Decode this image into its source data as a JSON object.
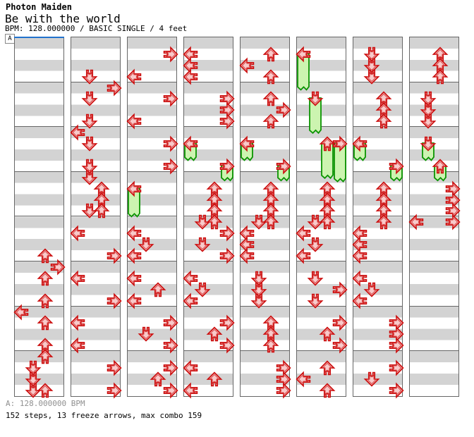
{
  "header": {
    "group": "Photon Maiden",
    "title": "Be with the world",
    "info": "BPM: 128.000000 / BASIC SINGLE / 4 feet"
  },
  "section_marker": {
    "label": "A"
  },
  "footer": {
    "bpm_legend": "A: 128.000000 BPM",
    "summary": "152 steps, 13 freeze arrows, max combo 159"
  },
  "colors": {
    "arrow_fill": "#f8caca",
    "arrow_stroke": "#cc1010",
    "arrow_inner_stroke": "#d84040",
    "freeze_fill": "#ccf4b0",
    "freeze_stroke": "#0a9400",
    "stripe_gray": "#d3d3d3",
    "stripe_white": "#ffffff",
    "measure_line": "#666666",
    "section_line": "#2272cc",
    "footer_gray": "#909090"
  },
  "chart_data": {
    "type": "step-chart",
    "game_mode": "BASIC SINGLE",
    "bpm": 128.0,
    "feet": 4,
    "lanes": [
      "left",
      "down",
      "up",
      "right"
    ],
    "columns": 8,
    "measures_per_column": 8,
    "beats_per_measure": 4,
    "totals": {
      "steps": 152,
      "freeze_arrows": 13,
      "max_combo": 159
    },
    "arrow_format": "[beat_row_0_to_31_within_column, direction]",
    "freeze_format": "[direction, start_beat_row, end_beat_row]",
    "steps": [
      {
        "arrows": [
          [
            19,
            "up"
          ],
          [
            20,
            "right"
          ],
          [
            21,
            "up"
          ],
          [
            23,
            "up"
          ],
          [
            24,
            "left"
          ],
          [
            25,
            "up"
          ],
          [
            27,
            "up"
          ],
          [
            28,
            "up"
          ],
          [
            29,
            "down"
          ],
          [
            30,
            "down"
          ],
          [
            31,
            "down"
          ],
          [
            31,
            "up"
          ]
        ],
        "freezes": []
      },
      {
        "arrows": [
          [
            3,
            "down"
          ],
          [
            4,
            "right"
          ],
          [
            5,
            "down"
          ],
          [
            7,
            "down"
          ],
          [
            8,
            "left"
          ],
          [
            9,
            "down"
          ],
          [
            11,
            "down"
          ],
          [
            12,
            "down"
          ],
          [
            13,
            "up"
          ],
          [
            14,
            "up"
          ],
          [
            15,
            "down"
          ],
          [
            15,
            "up"
          ],
          [
            17,
            "left"
          ],
          [
            19,
            "right"
          ],
          [
            21,
            "left"
          ],
          [
            23,
            "right"
          ],
          [
            25,
            "left"
          ],
          [
            27,
            "left"
          ],
          [
            29,
            "right"
          ],
          [
            31,
            "right"
          ]
        ],
        "freezes": []
      },
      {
        "arrows": [
          [
            1,
            "right"
          ],
          [
            3,
            "left"
          ],
          [
            5,
            "right"
          ],
          [
            7,
            "left"
          ],
          [
            9,
            "right"
          ],
          [
            11,
            "right"
          ],
          [
            13,
            "left"
          ],
          [
            17,
            "left"
          ],
          [
            18,
            "down"
          ],
          [
            19,
            "left"
          ],
          [
            21,
            "left"
          ],
          [
            22,
            "up"
          ],
          [
            23,
            "left"
          ],
          [
            25,
            "right"
          ],
          [
            26,
            "down"
          ],
          [
            27,
            "right"
          ],
          [
            29,
            "right"
          ],
          [
            30,
            "up"
          ],
          [
            31,
            "right"
          ]
        ],
        "freezes": [
          [
            "left",
            13,
            16
          ]
        ]
      },
      {
        "arrows": [
          [
            1,
            "left"
          ],
          [
            2,
            "left"
          ],
          [
            3,
            "left"
          ],
          [
            5,
            "right"
          ],
          [
            6,
            "right"
          ],
          [
            7,
            "right"
          ],
          [
            9,
            "left"
          ],
          [
            11,
            "right"
          ],
          [
            13,
            "up"
          ],
          [
            14,
            "up"
          ],
          [
            15,
            "up"
          ],
          [
            16,
            "down"
          ],
          [
            16,
            "up"
          ],
          [
            17,
            "right"
          ],
          [
            18,
            "down"
          ],
          [
            19,
            "right"
          ],
          [
            21,
            "left"
          ],
          [
            22,
            "down"
          ],
          [
            23,
            "left"
          ],
          [
            25,
            "right"
          ],
          [
            26,
            "up"
          ],
          [
            27,
            "right"
          ],
          [
            29,
            "left"
          ],
          [
            30,
            "up"
          ],
          [
            31,
            "left"
          ]
        ],
        "freezes": [
          [
            "left",
            9,
            11
          ],
          [
            "right",
            11,
            12.8
          ]
        ]
      },
      {
        "arrows": [
          [
            1,
            "up"
          ],
          [
            2,
            "left"
          ],
          [
            3,
            "up"
          ],
          [
            5,
            "up"
          ],
          [
            6,
            "right"
          ],
          [
            7,
            "up"
          ],
          [
            9,
            "left"
          ],
          [
            11,
            "right"
          ],
          [
            13,
            "up"
          ],
          [
            14,
            "up"
          ],
          [
            15,
            "up"
          ],
          [
            16,
            "down"
          ],
          [
            16,
            "up"
          ],
          [
            17,
            "left"
          ],
          [
            18,
            "left"
          ],
          [
            19,
            "left"
          ],
          [
            21,
            "down"
          ],
          [
            22,
            "down"
          ],
          [
            23,
            "down"
          ],
          [
            25,
            "up"
          ],
          [
            26,
            "up"
          ],
          [
            27,
            "up"
          ],
          [
            29,
            "right"
          ],
          [
            30,
            "right"
          ],
          [
            31,
            "right"
          ]
        ],
        "freezes": [
          [
            "left",
            9,
            11
          ],
          [
            "right",
            11,
            12.8
          ]
        ]
      },
      {
        "arrows": [
          [
            1,
            "left"
          ],
          [
            5,
            "down"
          ],
          [
            9,
            "up"
          ],
          [
            9,
            "right"
          ],
          [
            13,
            "up"
          ],
          [
            14,
            "up"
          ],
          [
            15,
            "up"
          ],
          [
            16,
            "down"
          ],
          [
            16,
            "up"
          ],
          [
            17,
            "left"
          ],
          [
            18,
            "down"
          ],
          [
            19,
            "left"
          ],
          [
            21,
            "down"
          ],
          [
            22,
            "right"
          ],
          [
            23,
            "down"
          ],
          [
            25,
            "right"
          ],
          [
            26,
            "up"
          ],
          [
            27,
            "right"
          ],
          [
            29,
            "up"
          ],
          [
            30,
            "left"
          ],
          [
            31,
            "up"
          ]
        ],
        "freezes": [
          [
            "left",
            1,
            4.7
          ],
          [
            "down",
            5,
            8.6
          ],
          [
            "up",
            9,
            12.6
          ],
          [
            "right",
            9,
            12.9
          ]
        ]
      },
      {
        "arrows": [
          [
            1,
            "down"
          ],
          [
            2,
            "down"
          ],
          [
            3,
            "down"
          ],
          [
            5,
            "up"
          ],
          [
            6,
            "up"
          ],
          [
            7,
            "up"
          ],
          [
            9,
            "left"
          ],
          [
            11,
            "right"
          ],
          [
            13,
            "up"
          ],
          [
            14,
            "up"
          ],
          [
            15,
            "up"
          ],
          [
            16,
            "up"
          ],
          [
            17,
            "left"
          ],
          [
            18,
            "left"
          ],
          [
            19,
            "left"
          ],
          [
            21,
            "left"
          ],
          [
            22,
            "down"
          ],
          [
            23,
            "left"
          ],
          [
            25,
            "right"
          ],
          [
            26,
            "right"
          ],
          [
            27,
            "right"
          ],
          [
            29,
            "right"
          ],
          [
            30,
            "down"
          ],
          [
            31,
            "right"
          ]
        ],
        "freezes": [
          [
            "left",
            9,
            11
          ],
          [
            "right",
            11,
            12.8
          ]
        ]
      },
      {
        "arrows": [
          [
            1,
            "up"
          ],
          [
            2,
            "up"
          ],
          [
            3,
            "up"
          ],
          [
            5,
            "down"
          ],
          [
            6,
            "down"
          ],
          [
            7,
            "down"
          ],
          [
            9,
            "down"
          ],
          [
            11,
            "up"
          ],
          [
            13,
            "right"
          ],
          [
            14,
            "right"
          ],
          [
            15,
            "right"
          ],
          [
            16,
            "left"
          ],
          [
            16,
            "right"
          ]
        ],
        "freezes": [
          [
            "down",
            9,
            11
          ],
          [
            "up",
            11,
            12.8
          ]
        ]
      }
    ]
  }
}
